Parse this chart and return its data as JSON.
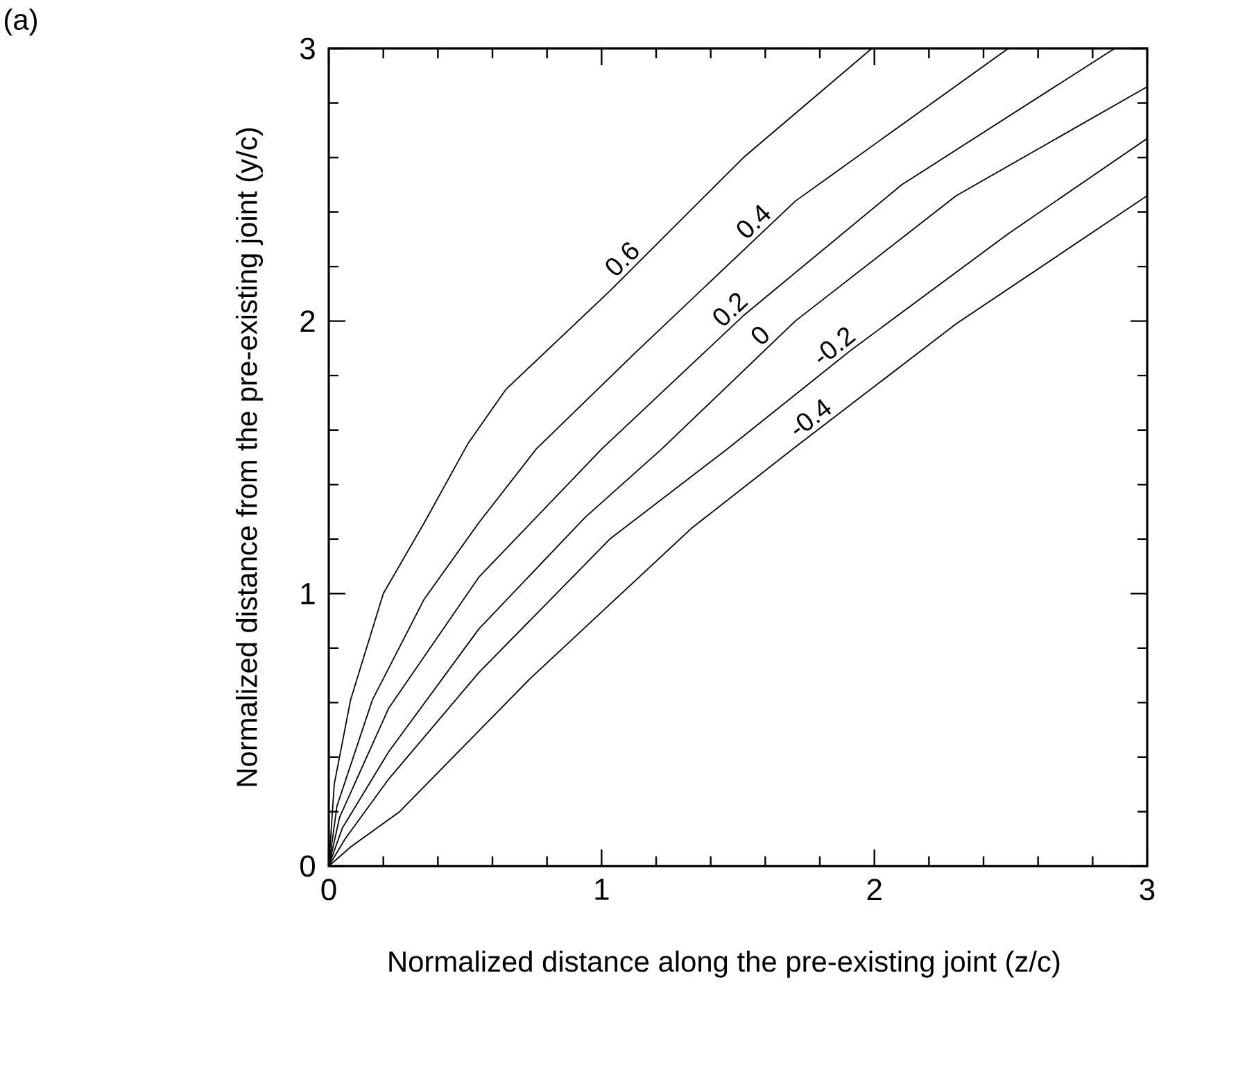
{
  "chart_data": {
    "type": "line",
    "xlabel": "Normalized distance along the pre-existing joint (z/c)",
    "ylabel": "Normalized distance from the pre-existing joint (y/c)",
    "annotations": [
      "(a)"
    ],
    "xlim": [
      0,
      3
    ],
    "ylim": [
      0,
      3
    ],
    "xticks": [
      0,
      1,
      2,
      3
    ],
    "yticks": [
      0,
      1,
      2,
      3
    ],
    "grid": false,
    "marker": "none",
    "line_style": "solid",
    "series": [
      {
        "name": "0.6",
        "color": "#000000",
        "x": [
          0,
          0.02,
          0.08,
          0.2,
          0.35,
          0.51,
          0.65,
          1.03,
          1.52,
          1.99
        ],
        "values": [
          0,
          0.3,
          0.61,
          1.0,
          1.26,
          1.55,
          1.75,
          2.11,
          2.6,
          3.0
        ]
      },
      {
        "name": "0.4",
        "color": "#000000",
        "x": [
          0,
          0.03,
          0.16,
          0.35,
          0.55,
          0.76,
          1.13,
          1.71,
          2.49
        ],
        "values": [
          0,
          0.22,
          0.61,
          0.98,
          1.26,
          1.53,
          1.89,
          2.44,
          3.0
        ]
      },
      {
        "name": "0.2",
        "color": "#000000",
        "x": [
          0,
          0.04,
          0.22,
          0.55,
          1.0,
          1.52,
          2.1,
          2.88
        ],
        "values": [
          0,
          0.18,
          0.58,
          1.06,
          1.53,
          2.02,
          2.5,
          3.0
        ]
      },
      {
        "name": "0",
        "color": "#000000",
        "x": [
          0,
          0.05,
          0.22,
          0.55,
          0.94,
          1.22,
          1.71,
          2.3,
          3.0
        ],
        "values": [
          0,
          0.14,
          0.42,
          0.87,
          1.28,
          1.53,
          2.0,
          2.46,
          2.86
        ]
      },
      {
        "name": "-0.2",
        "color": "#000000",
        "x": [
          0,
          0.06,
          0.22,
          0.55,
          1.03,
          1.46,
          1.91,
          2.49,
          3.0
        ],
        "values": [
          0,
          0.1,
          0.32,
          0.71,
          1.2,
          1.53,
          1.89,
          2.32,
          2.67
        ]
      },
      {
        "name": "-0.4",
        "color": "#000000",
        "x": [
          0,
          0.08,
          0.26,
          0.74,
          1.33,
          1.7,
          2.3,
          3.0
        ],
        "values": [
          0,
          0.07,
          0.2,
          0.69,
          1.24,
          1.53,
          1.99,
          2.46
        ]
      }
    ]
  }
}
